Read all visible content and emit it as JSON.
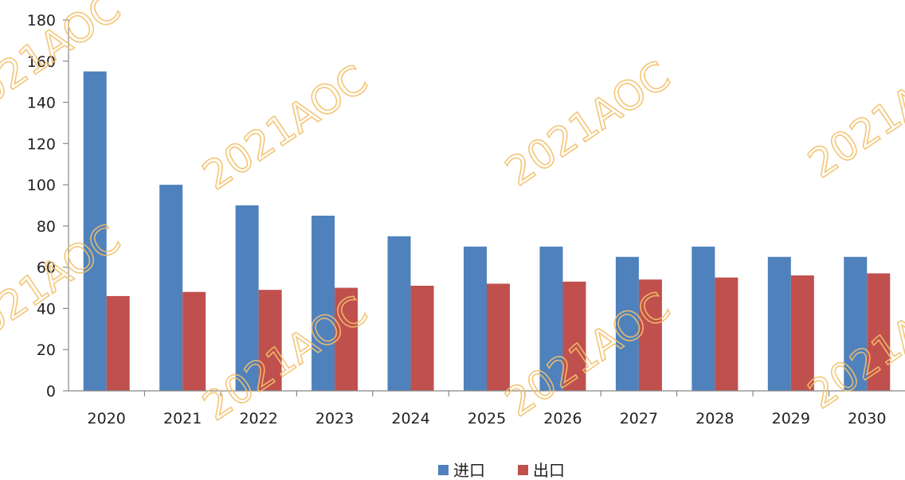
{
  "watermark": "2021AOC",
  "chart_data": {
    "type": "bar",
    "categories": [
      "2020",
      "2021",
      "2022",
      "2023",
      "2024",
      "2025",
      "2026",
      "2027",
      "2028",
      "2029",
      "2030"
    ],
    "series": [
      {
        "name": "进口",
        "color": "#4f81bd",
        "values": [
          155,
          100,
          90,
          85,
          75,
          70,
          70,
          65,
          70,
          65,
          65
        ]
      },
      {
        "name": "出口",
        "color": "#c0504d",
        "values": [
          46,
          48,
          49,
          50,
          51,
          52,
          53,
          54,
          55,
          56,
          57
        ]
      }
    ],
    "ylim": [
      0,
      180
    ],
    "yticks": [
      0,
      20,
      40,
      60,
      80,
      100,
      120,
      140,
      160,
      180
    ],
    "legend_position": "bottom",
    "grid": false
  }
}
